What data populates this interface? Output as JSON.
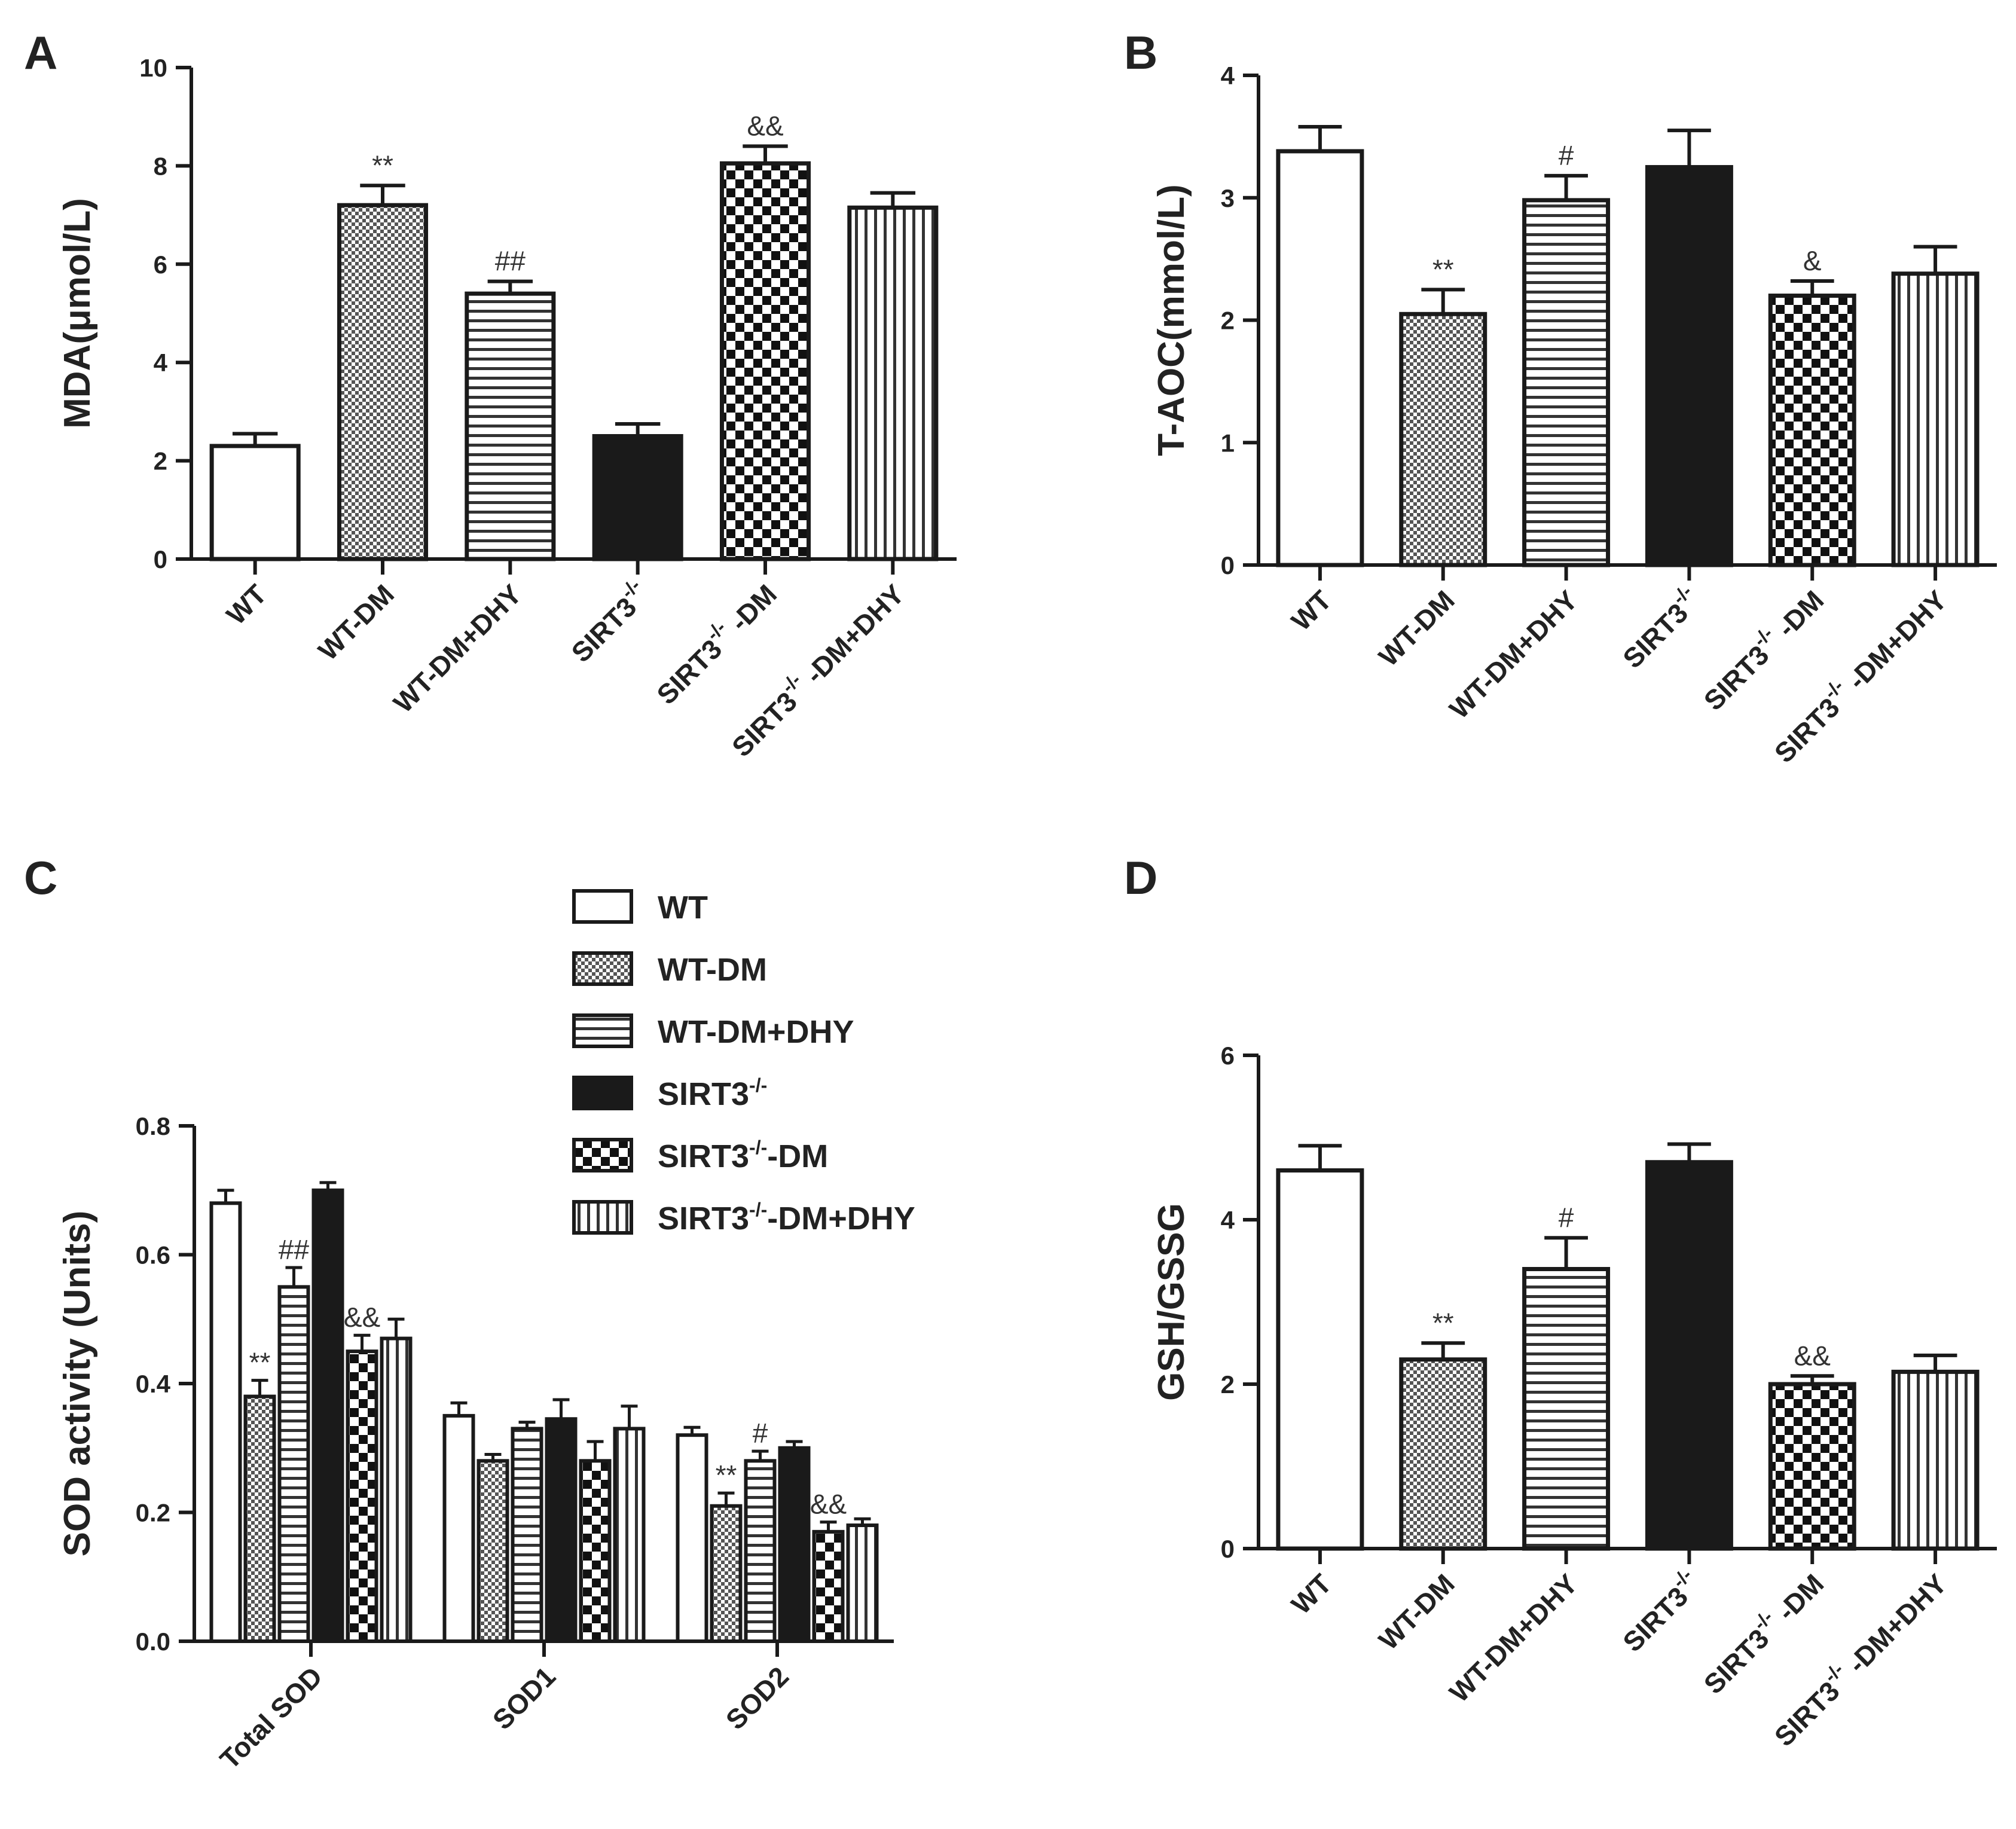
{
  "colors": {
    "ink": "#1a1a1a",
    "background": "#ffffff"
  },
  "chart_data": [
    {
      "panel": "A",
      "type": "bar",
      "ylabel": "MDA(μmol/L)",
      "ylim": [
        0,
        10
      ],
      "yticks": [
        0,
        2,
        4,
        6,
        8,
        10
      ],
      "categories": [
        {
          "base": "WT",
          "sup": "",
          "tail": ""
        },
        {
          "base": "WT-DM",
          "sup": "",
          "tail": ""
        },
        {
          "base": "WT-DM+DHY",
          "sup": "",
          "tail": ""
        },
        {
          "base": "SIRT3",
          "sup": "-/-",
          "tail": ""
        },
        {
          "base": "SIRT3",
          "sup": "-/-",
          "tail": " -DM"
        },
        {
          "base": "SIRT3",
          "sup": "-/-",
          "tail": " -DM+DHY"
        }
      ],
      "patterns": [
        "white",
        "dots",
        "hlines",
        "black",
        "checker",
        "vlines"
      ],
      "values": [
        2.3,
        7.2,
        5.4,
        2.5,
        8.05,
        7.15
      ],
      "errors": [
        0.25,
        0.4,
        0.25,
        0.25,
        0.35,
        0.3
      ],
      "annotations": [
        "",
        "**",
        "##",
        "",
        "&&",
        ""
      ]
    },
    {
      "panel": "B",
      "type": "bar",
      "ylabel": "T-AOC(mmol/L)",
      "ylim": [
        0,
        4
      ],
      "yticks": [
        0,
        1,
        2,
        3,
        4
      ],
      "categories": [
        {
          "base": "WT",
          "sup": "",
          "tail": ""
        },
        {
          "base": "WT-DM",
          "sup": "",
          "tail": ""
        },
        {
          "base": "WT-DM+DHY",
          "sup": "",
          "tail": ""
        },
        {
          "base": "SIRT3",
          "sup": "-/-",
          "tail": ""
        },
        {
          "base": "SIRT3",
          "sup": "-/-",
          "tail": " -DM"
        },
        {
          "base": "SIRT3",
          "sup": "-/-",
          "tail": " -DM+DHY"
        }
      ],
      "patterns": [
        "white",
        "dots",
        "hlines",
        "black",
        "checker",
        "vlines"
      ],
      "values": [
        3.38,
        2.05,
        2.98,
        3.25,
        2.2,
        2.38
      ],
      "errors": [
        0.2,
        0.2,
        0.2,
        0.3,
        0.12,
        0.22
      ],
      "annotations": [
        "",
        "**",
        "#",
        "",
        "&",
        ""
      ]
    },
    {
      "panel": "C",
      "type": "bar",
      "ylabel": "SOD activity (Units)",
      "ylim": [
        0,
        0.8
      ],
      "yticks": [
        "0.0",
        "0.2",
        "0.4",
        "0.6",
        "0.8"
      ],
      "categories": [
        "Total SOD",
        "SOD1",
        "SOD2"
      ],
      "series": [
        {
          "name": "WT",
          "sup": "",
          "tail": "",
          "pattern": "white",
          "values": [
            0.68,
            0.35,
            0.32
          ],
          "errors": [
            0.02,
            0.02,
            0.012
          ],
          "annotations": [
            "",
            "",
            ""
          ]
        },
        {
          "name": "WT-DM",
          "sup": "",
          "tail": "",
          "pattern": "dots",
          "values": [
            0.38,
            0.28,
            0.21
          ],
          "errors": [
            0.025,
            0.01,
            0.02
          ],
          "annotations": [
            "**",
            "",
            "**"
          ]
        },
        {
          "name": "WT-DM+DHY",
          "sup": "",
          "tail": "",
          "pattern": "hlines",
          "values": [
            0.55,
            0.33,
            0.28
          ],
          "errors": [
            0.03,
            0.01,
            0.015
          ],
          "annotations": [
            "##",
            "",
            "#"
          ]
        },
        {
          "name": "SIRT3",
          "sup": "-/-",
          "tail": "",
          "pattern": "black",
          "values": [
            0.7,
            0.345,
            0.3
          ],
          "errors": [
            0.012,
            0.03,
            0.01
          ],
          "annotations": [
            "",
            "",
            ""
          ]
        },
        {
          "name": "SIRT3",
          "sup": "-/-",
          "tail": "-DM",
          "pattern": "checker",
          "values": [
            0.45,
            0.28,
            0.17
          ],
          "errors": [
            0.025,
            0.03,
            0.015
          ],
          "annotations": [
            "&&",
            "",
            "&&"
          ]
        },
        {
          "name": "SIRT3",
          "sup": "-/-",
          "tail": "-DM+DHY",
          "pattern": "vlines",
          "values": [
            0.47,
            0.33,
            0.18
          ],
          "errors": [
            0.03,
            0.035,
            0.01
          ],
          "annotations": [
            "",
            "",
            ""
          ]
        }
      ],
      "legend": "top-right"
    },
    {
      "panel": "D",
      "type": "bar",
      "ylabel": "GSH/GSSG",
      "ylim": [
        0,
        6
      ],
      "yticks": [
        0,
        2,
        4,
        6
      ],
      "categories": [
        {
          "base": "WT",
          "sup": "",
          "tail": ""
        },
        {
          "base": "WT-DM",
          "sup": "",
          "tail": ""
        },
        {
          "base": "WT-DM+DHY",
          "sup": "",
          "tail": ""
        },
        {
          "base": "SIRT3",
          "sup": "-/-",
          "tail": ""
        },
        {
          "base": "SIRT3",
          "sup": "-/-",
          "tail": " -DM"
        },
        {
          "base": "SIRT3",
          "sup": "-/-",
          "tail": " -DM+DHY"
        }
      ],
      "patterns": [
        "white",
        "dots",
        "hlines",
        "black",
        "checker",
        "vlines"
      ],
      "values": [
        4.6,
        2.3,
        3.4,
        4.7,
        2.0,
        2.15
      ],
      "errors": [
        0.3,
        0.2,
        0.38,
        0.22,
        0.1,
        0.2
      ],
      "annotations": [
        "",
        "**",
        "#",
        "",
        "&&",
        ""
      ]
    }
  ]
}
